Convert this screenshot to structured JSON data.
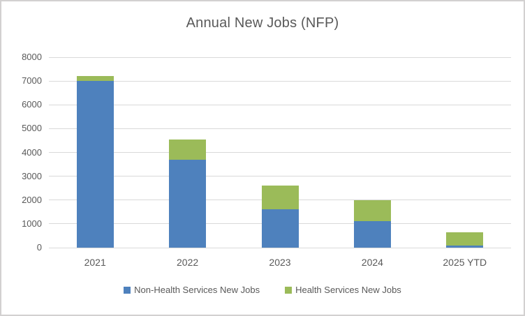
{
  "window": {
    "background": "#ffffff",
    "border_color": "#d2d0d0"
  },
  "chart_data": {
    "type": "bar",
    "stacked": true,
    "title": "Annual New Jobs (NFP)",
    "categories": [
      "2021",
      "2022",
      "2023",
      "2024",
      "2025 YTD"
    ],
    "series": [
      {
        "name": "Non-Health Services New Jobs",
        "color": "#4e81bd",
        "values": [
          7000,
          3700,
          1600,
          1100,
          100
        ]
      },
      {
        "name": "Health Services New Jobs",
        "color": "#9bbb59",
        "values": [
          200,
          850,
          1000,
          900,
          550
        ]
      }
    ],
    "stack_totals": [
      7200,
      4550,
      2600,
      2000,
      650
    ],
    "xlabel": "",
    "ylabel": "",
    "ylim": [
      0,
      8000
    ],
    "ytick_step": 1000,
    "yticks": [
      "0",
      "1000",
      "2000",
      "3000",
      "4000",
      "5000",
      "6000",
      "7000",
      "8000"
    ],
    "grid": "horizontal",
    "gridline_color": "#d9d9d9",
    "axis_text_color": "#595959",
    "title_color": "#595959",
    "legend_position": "bottom"
  }
}
